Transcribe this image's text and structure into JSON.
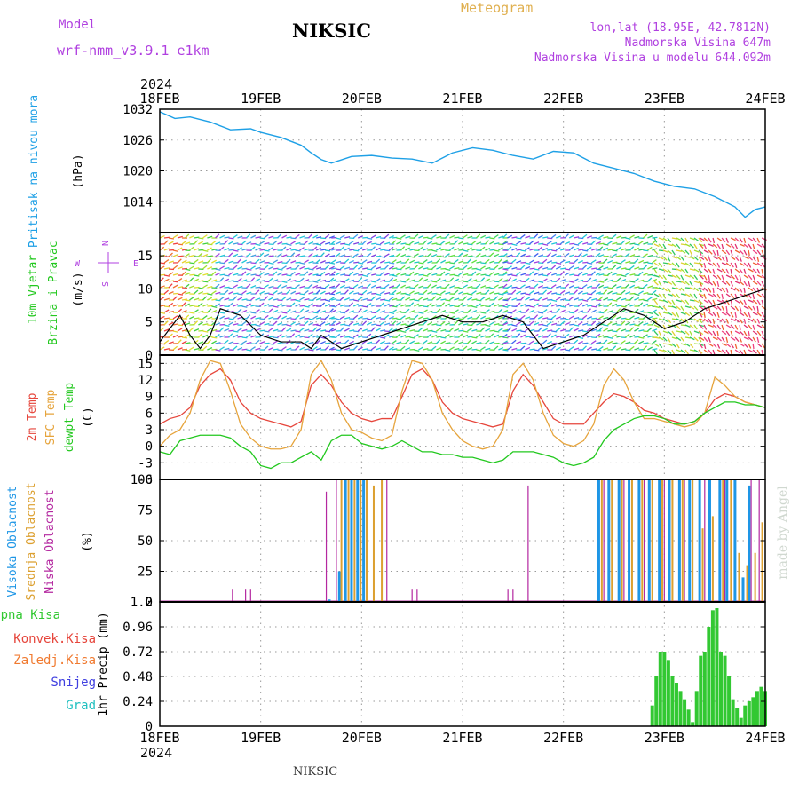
{
  "header": {
    "model_label": "Model",
    "model_name": "wrf-nmm_v3.9.1  e1km",
    "station": "NIKSIC",
    "meteogram": "Meteogram",
    "lonlat": "lon,lat (18.95E, 42.7812N)",
    "elevation": "Nadmorska Visina 647m",
    "model_elevation": "Nadmorska Visina u modelu 644.092m",
    "footer_station": "NIKSIC",
    "credit": "made by Angel"
  },
  "colors": {
    "pressure": "#1ea0e6",
    "temp2m": "#e6463c",
    "sfc": "#e6a43c",
    "dewpt": "#22c81e",
    "high_cloud": "#1e96e6",
    "mid_cloud": "#dca030",
    "low_cloud": "#b428a0",
    "precip": "#32c832",
    "purple_text": "#b040e0"
  },
  "time_axis": {
    "year": "2024",
    "labels": [
      "18FEB",
      "19FEB",
      "20FEB",
      "21FEB",
      "22FEB",
      "23FEB",
      "24FEB"
    ]
  },
  "chart_data": [
    {
      "type": "line",
      "panel": "pressure",
      "ylabel_main": "Pritisak na nivou mora",
      "unit": "(hPa)",
      "yticks": [
        1014,
        1020,
        1026,
        1032
      ],
      "ylim": [
        1008,
        1032
      ],
      "x": [
        0,
        0.15,
        0.3,
        0.5,
        0.7,
        0.9,
        1.0,
        1.2,
        1.4,
        1.5,
        1.6,
        1.7,
        1.9,
        2.1,
        2.3,
        2.5,
        2.7,
        2.9,
        3.1,
        3.3,
        3.5,
        3.7,
        3.9,
        4.1,
        4.3,
        4.5,
        4.7,
        4.9,
        5.1,
        5.3,
        5.5,
        5.6,
        5.7,
        5.8,
        5.9,
        6.0
      ],
      "values": [
        1031.5,
        1030.2,
        1030.5,
        1029.5,
        1028,
        1028.2,
        1027.5,
        1026.5,
        1025,
        1023.5,
        1022.2,
        1021.5,
        1022.8,
        1023,
        1022.5,
        1022.3,
        1021.5,
        1023.5,
        1024.5,
        1024,
        1023,
        1022.3,
        1023.8,
        1023.5,
        1021.5,
        1020.5,
        1019.5,
        1018,
        1017,
        1016.5,
        1015,
        1014,
        1013,
        1011,
        1012.5,
        1013
      ],
      "grid": true
    },
    {
      "type": "line",
      "panel": "wind",
      "ylabel_main": "10m Vjetar",
      "ylabel_sub": "Brzina i Pravac",
      "unit": "(m/s)",
      "compass": {
        "n": "N",
        "s": "S",
        "e": "E",
        "w": "W"
      },
      "yticks": [
        0,
        5,
        10,
        15
      ],
      "ylim": [
        0,
        18.5
      ],
      "x": [
        0,
        0.1,
        0.2,
        0.3,
        0.4,
        0.5,
        0.6,
        0.8,
        1.0,
        1.2,
        1.4,
        1.5,
        1.6,
        1.7,
        1.8,
        2.0,
        2.2,
        2.4,
        2.6,
        2.8,
        3.0,
        3.2,
        3.4,
        3.6,
        3.7,
        3.8,
        4.0,
        4.2,
        4.4,
        4.6,
        4.8,
        5.0,
        5.2,
        5.4,
        5.6,
        5.8,
        6.0
      ],
      "values": [
        2,
        4,
        6,
        3,
        1,
        3,
        7,
        6,
        3,
        2,
        2,
        1,
        3,
        2,
        1,
        2,
        3,
        4,
        5,
        6,
        5,
        5,
        6,
        5,
        3,
        1,
        2,
        3,
        5,
        7,
        6,
        4,
        5,
        7,
        8,
        9,
        10
      ],
      "grid": true
    },
    {
      "type": "line",
      "panel": "temperature",
      "ylabel_lines": [
        "2m Temp",
        "SFC Temp",
        "dewpt Temp"
      ],
      "unit": "(C)",
      "yticks": [
        -6,
        -3,
        0,
        3,
        6,
        9,
        12,
        15
      ],
      "ylim": [
        -6,
        16.5
      ],
      "x": [
        0,
        0.1,
        0.2,
        0.3,
        0.4,
        0.5,
        0.6,
        0.7,
        0.8,
        0.9,
        1.0,
        1.1,
        1.2,
        1.3,
        1.4,
        1.5,
        1.6,
        1.7,
        1.8,
        1.9,
        2.0,
        2.1,
        2.2,
        2.3,
        2.4,
        2.5,
        2.6,
        2.7,
        2.8,
        2.9,
        3.0,
        3.1,
        3.2,
        3.3,
        3.4,
        3.5,
        3.6,
        3.7,
        3.8,
        3.9,
        4.0,
        4.1,
        4.2,
        4.3,
        4.4,
        4.5,
        4.6,
        4.7,
        4.8,
        4.9,
        5.0,
        5.1,
        5.2,
        5.3,
        5.4,
        5.5,
        5.6,
        5.7,
        5.8,
        5.9,
        6.0
      ],
      "series": [
        {
          "name": "2m Temp",
          "values": [
            4,
            5,
            5.5,
            7,
            11,
            13,
            14,
            12,
            8,
            6,
            5,
            4.5,
            4,
            3.5,
            4.5,
            11,
            13,
            11,
            8,
            6,
            5,
            4.5,
            5,
            5,
            9,
            13,
            14,
            12,
            8,
            6,
            5,
            4.5,
            4,
            3.5,
            4,
            10,
            13,
            11,
            8,
            5,
            4,
            4,
            4,
            6,
            8,
            9.5,
            9,
            8,
            6.5,
            6,
            5,
            4.5,
            4,
            4.5,
            6,
            8.5,
            9.5,
            9,
            8,
            7.5,
            7
          ]
        },
        {
          "name": "SFC Temp",
          "values": [
            0,
            2,
            3,
            6,
            12,
            15.5,
            15,
            10,
            4,
            1.5,
            0,
            -0.5,
            -0.5,
            0,
            3,
            13,
            15.5,
            12,
            6,
            3,
            2.5,
            1.5,
            1,
            2,
            10,
            15.5,
            15,
            12,
            6,
            3,
            1,
            0,
            -0.5,
            0,
            3,
            13,
            15,
            12,
            6,
            2,
            0.5,
            0,
            1,
            4,
            11,
            14,
            12,
            8,
            5,
            5,
            4.5,
            4,
            3.5,
            4,
            6,
            12.5,
            11,
            9,
            8,
            7.5,
            7
          ]
        },
        {
          "name": "dewpt Temp",
          "values": [
            -1,
            -1.5,
            1,
            1.5,
            2,
            2,
            2,
            1.5,
            0,
            -1,
            -3.5,
            -4,
            -3,
            -3,
            -2,
            -1,
            -2.5,
            1,
            2,
            2,
            0.5,
            0,
            -0.5,
            0,
            1,
            0,
            -1,
            -1,
            -1.5,
            -1.5,
            -2,
            -2,
            -2.5,
            -3,
            -2.5,
            -1,
            -1,
            -1,
            -1.5,
            -2,
            -3,
            -3.5,
            -3,
            -2,
            1,
            3,
            4,
            5,
            5.5,
            5.5,
            5,
            4,
            4,
            4.5,
            6,
            7,
            8,
            8,
            7.5,
            7.5,
            7
          ]
        }
      ],
      "grid": true
    },
    {
      "type": "bar",
      "panel": "clouds",
      "ylabel_lines": [
        "Visoka Oblacnost",
        "Srednja Oblacnost",
        "Niska Oblacnost"
      ],
      "unit": "(%)",
      "yticks": [
        0,
        25,
        50,
        75,
        100
      ],
      "ylim": [
        0,
        100
      ],
      "series": [
        {
          "name": "Visoka Oblacnost",
          "x": [
            1.68,
            1.78,
            1.84,
            1.9,
            1.96,
            2.02,
            4.35,
            4.45,
            4.55,
            4.65,
            4.75,
            4.85,
            4.95,
            5.05,
            5.15,
            5.25,
            5.35,
            5.45,
            5.55,
            5.62,
            5.7,
            5.78,
            5.84
          ],
          "values": [
            2,
            25,
            100,
            100,
            100,
            100,
            100,
            100,
            100,
            100,
            100,
            100,
            100,
            100,
            100,
            100,
            100,
            100,
            100,
            100,
            100,
            20,
            95
          ]
        },
        {
          "name": "Srednja Oblacnost",
          "x": [
            1.8,
            1.87,
            1.93,
            1.99,
            2.05,
            2.12,
            2.2,
            4.38,
            4.48,
            4.58,
            4.68,
            4.78,
            4.88,
            4.98,
            5.08,
            5.18,
            5.28,
            5.38,
            5.48,
            5.58,
            5.66,
            5.74,
            5.82,
            5.9,
            5.97
          ],
          "values": [
            100,
            100,
            100,
            100,
            100,
            95,
            100,
            100,
            100,
            100,
            100,
            100,
            100,
            100,
            100,
            100,
            100,
            60,
            70,
            100,
            100,
            40,
            30,
            40,
            65
          ]
        },
        {
          "name": "Niska Oblacnost",
          "x": [
            0.72,
            0.85,
            0.9,
            1.65,
            1.75,
            2.25,
            2.5,
            2.55,
            3.45,
            3.5,
            3.65,
            4.4,
            4.6,
            4.8,
            5.0,
            5.2,
            5.4,
            5.6,
            5.86,
            5.94
          ],
          "values": [
            10,
            10,
            10,
            90,
            100,
            100,
            10,
            10,
            10,
            10,
            95,
            100,
            100,
            100,
            100,
            100,
            100,
            100,
            100,
            100
          ]
        }
      ],
      "grid": true
    },
    {
      "type": "bar",
      "panel": "precipitation",
      "legend": [
        "Ukupna Kisa",
        "Konvek.Kisa",
        "Zaledj.Kisa",
        "Snijeg",
        "Grad"
      ],
      "ylabel": "1hr Precip (mm)",
      "yticks": [
        0,
        0.24,
        0.48,
        0.72,
        0.96,
        1.2
      ],
      "ylim": [
        0,
        1.2
      ],
      "series": [
        {
          "name": "Ukupna Kisa",
          "x": [
            4.88,
            4.92,
            4.96,
            5.0,
            5.04,
            5.08,
            5.12,
            5.16,
            5.2,
            5.24,
            5.28,
            5.32,
            5.36,
            5.4,
            5.44,
            5.48,
            5.52,
            5.56,
            5.6,
            5.64,
            5.68,
            5.72,
            5.76,
            5.8,
            5.84,
            5.88,
            5.92,
            5.96,
            6.0
          ],
          "values": [
            0.2,
            0.48,
            0.72,
            0.72,
            0.64,
            0.48,
            0.42,
            0.34,
            0.26,
            0.16,
            0.04,
            0.34,
            0.68,
            0.72,
            0.96,
            1.12,
            1.14,
            0.72,
            0.68,
            0.48,
            0.26,
            0.18,
            0.08,
            0.2,
            0.24,
            0.28,
            0.34,
            0.38,
            0.34
          ]
        }
      ],
      "grid": true
    }
  ]
}
